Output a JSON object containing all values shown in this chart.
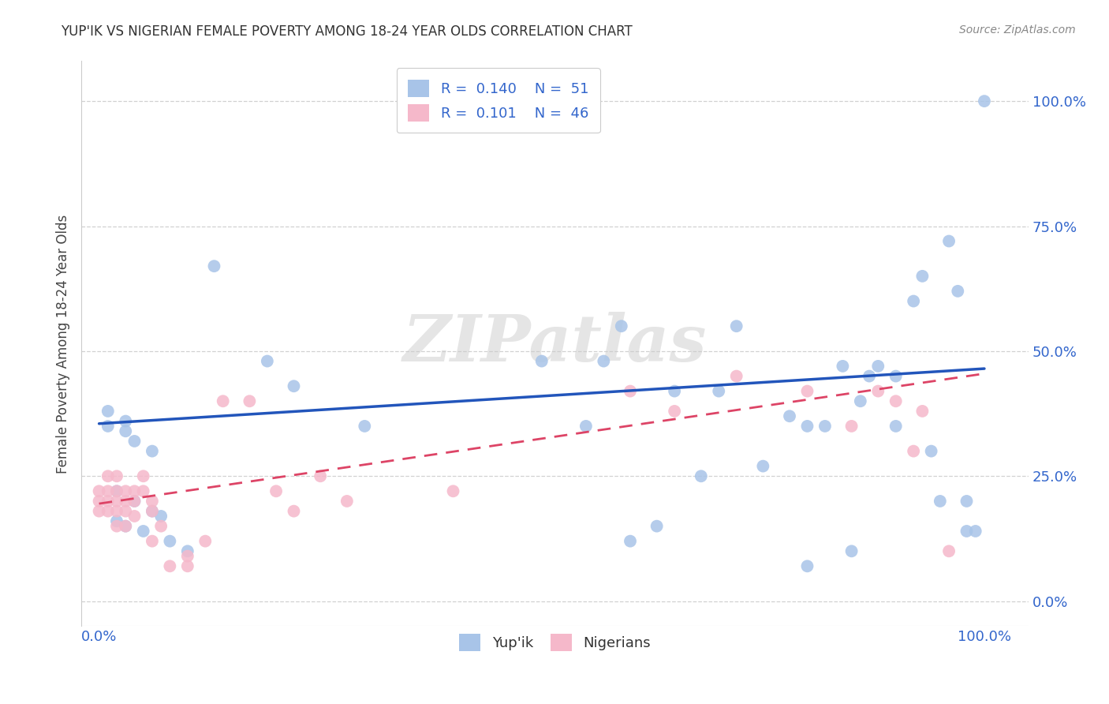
{
  "title": "YUP'IK VS NIGERIAN FEMALE POVERTY AMONG 18-24 YEAR OLDS CORRELATION CHART",
  "source": "Source: ZipAtlas.com",
  "ylabel": "Female Poverty Among 18-24 Year Olds",
  "xlim": [
    -0.02,
    1.05
  ],
  "ylim": [
    -0.05,
    1.08
  ],
  "xticks": [
    0.0,
    1.0
  ],
  "yticks": [
    0.0,
    0.25,
    0.5,
    0.75,
    1.0
  ],
  "xticklabels": [
    "0.0%",
    "100.0%"
  ],
  "yticklabels": [
    "0.0%",
    "25.0%",
    "50.0%",
    "75.0%",
    "100.0%"
  ],
  "ytick_color": "#3366CC",
  "xtick_color": "#3366CC",
  "yupik_color": "#A8C4E8",
  "nigerian_color": "#F5B8CA",
  "line_yupik_color": "#2255BB",
  "line_nigerian_color": "#DD4466",
  "legend_R_yupik": "0.140",
  "legend_N_yupik": "51",
  "legend_R_nigerian": "0.101",
  "legend_N_nigerian": "46",
  "watermark": "ZIPatlas",
  "bg_color": "#ffffff",
  "blue_line_x0": 0.0,
  "blue_line_y0": 0.355,
  "blue_line_x1": 1.0,
  "blue_line_y1": 0.465,
  "pink_line_x0": 0.0,
  "pink_line_y0": 0.195,
  "pink_line_x1": 1.0,
  "pink_line_y1": 0.455,
  "yupik_x": [
    0.01,
    0.03,
    0.01,
    0.03,
    0.04,
    0.06,
    0.02,
    0.04,
    0.06,
    0.07,
    0.02,
    0.03,
    0.05,
    0.08,
    0.1,
    0.13,
    0.19,
    0.22,
    0.3,
    0.5,
    0.55,
    0.59,
    0.63,
    0.65,
    0.68,
    0.7,
    0.72,
    0.75,
    0.78,
    0.8,
    0.8,
    0.82,
    0.84,
    0.85,
    0.86,
    0.87,
    0.88,
    0.9,
    0.9,
    0.92,
    0.93,
    0.94,
    0.95,
    0.96,
    0.97,
    0.98,
    0.98,
    0.99,
    1.0,
    0.6,
    0.57
  ],
  "yupik_y": [
    0.38,
    0.36,
    0.35,
    0.34,
    0.32,
    0.3,
    0.22,
    0.2,
    0.18,
    0.17,
    0.16,
    0.15,
    0.14,
    0.12,
    0.1,
    0.67,
    0.48,
    0.43,
    0.35,
    0.48,
    0.35,
    0.55,
    0.15,
    0.42,
    0.25,
    0.42,
    0.55,
    0.27,
    0.37,
    0.35,
    0.07,
    0.35,
    0.47,
    0.1,
    0.4,
    0.45,
    0.47,
    0.45,
    0.35,
    0.6,
    0.65,
    0.3,
    0.2,
    0.72,
    0.62,
    0.2,
    0.14,
    0.14,
    1.0,
    0.12,
    0.48
  ],
  "nigerian_x": [
    0.0,
    0.0,
    0.0,
    0.01,
    0.01,
    0.01,
    0.01,
    0.02,
    0.02,
    0.02,
    0.02,
    0.02,
    0.03,
    0.03,
    0.03,
    0.03,
    0.04,
    0.04,
    0.04,
    0.05,
    0.05,
    0.06,
    0.06,
    0.06,
    0.07,
    0.08,
    0.1,
    0.1,
    0.12,
    0.14,
    0.17,
    0.2,
    0.22,
    0.25,
    0.28,
    0.4,
    0.6,
    0.65,
    0.72,
    0.8,
    0.85,
    0.88,
    0.9,
    0.92,
    0.93,
    0.96
  ],
  "nigerian_y": [
    0.22,
    0.2,
    0.18,
    0.25,
    0.22,
    0.2,
    0.18,
    0.25,
    0.22,
    0.2,
    0.18,
    0.15,
    0.22,
    0.2,
    0.18,
    0.15,
    0.22,
    0.2,
    0.17,
    0.25,
    0.22,
    0.2,
    0.18,
    0.12,
    0.15,
    0.07,
    0.09,
    0.07,
    0.12,
    0.4,
    0.4,
    0.22,
    0.18,
    0.25,
    0.2,
    0.22,
    0.42,
    0.38,
    0.45,
    0.42,
    0.35,
    0.42,
    0.4,
    0.3,
    0.38,
    0.1
  ]
}
